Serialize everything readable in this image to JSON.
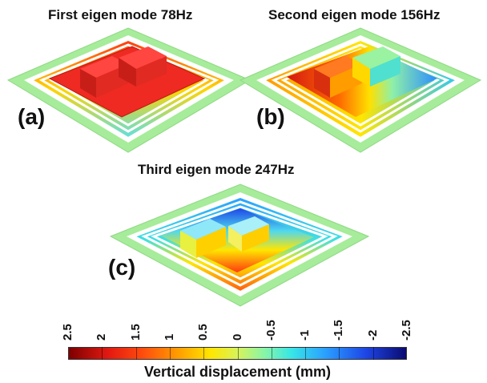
{
  "panels": [
    {
      "id": "a",
      "title": "First eigen mode 78Hz",
      "label": "(a)"
    },
    {
      "id": "b",
      "title": "Second eigen mode 156Hz",
      "label": "(b)"
    },
    {
      "id": "c",
      "title": "Third eigen mode 247Hz",
      "label": "(c)"
    }
  ],
  "colorbar": {
    "title": "Vertical displacement (mm)",
    "ticks": [
      "2.5",
      "2",
      "1.5",
      "1",
      "0.5",
      "0",
      "-0.5",
      "-1",
      "-1.5",
      "-2",
      "-2.5"
    ],
    "colors": [
      "#7d0000",
      "#e41a12",
      "#ff9a00",
      "#ffe600",
      "#88f5a8",
      "#38e6e6",
      "#2aa0ff",
      "#1e46e6",
      "#0a0a70"
    ]
  }
}
